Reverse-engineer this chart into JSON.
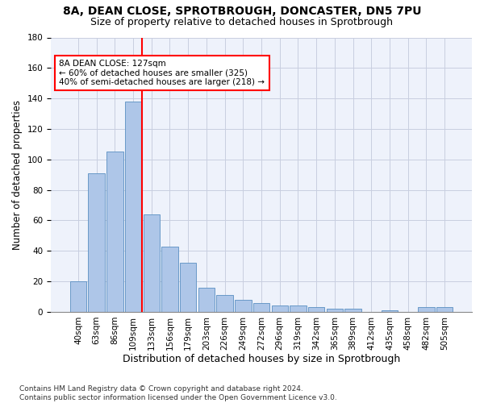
{
  "title1": "8A, DEAN CLOSE, SPROTBROUGH, DONCASTER, DN5 7PU",
  "title2": "Size of property relative to detached houses in Sprotbrough",
  "xlabel": "Distribution of detached houses by size in Sprotbrough",
  "ylabel": "Number of detached properties",
  "footnote": "Contains HM Land Registry data © Crown copyright and database right 2024.\nContains public sector information licensed under the Open Government Licence v3.0.",
  "bar_labels": [
    "40sqm",
    "63sqm",
    "86sqm",
    "109sqm",
    "133sqm",
    "156sqm",
    "179sqm",
    "203sqm",
    "226sqm",
    "249sqm",
    "272sqm",
    "296sqm",
    "319sqm",
    "342sqm",
    "365sqm",
    "389sqm",
    "412sqm",
    "435sqm",
    "458sqm",
    "482sqm",
    "505sqm"
  ],
  "bar_values": [
    20,
    91,
    105,
    138,
    64,
    43,
    32,
    16,
    11,
    8,
    6,
    4,
    4,
    3,
    2,
    2,
    0,
    1,
    0,
    3,
    3
  ],
  "bar_color": "#aec6e8",
  "bar_edge_color": "#5a8fc2",
  "vline_color": "red",
  "annotation_text": "8A DEAN CLOSE: 127sqm\n← 60% of detached houses are smaller (325)\n40% of semi-detached houses are larger (218) →",
  "annotation_box_color": "red",
  "ylim": [
    0,
    180
  ],
  "yticks": [
    0,
    20,
    40,
    60,
    80,
    100,
    120,
    140,
    160,
    180
  ],
  "background_color": "#eef2fb",
  "grid_color": "#c8cee0",
  "title1_fontsize": 10,
  "title2_fontsize": 9,
  "xlabel_fontsize": 9,
  "ylabel_fontsize": 8.5,
  "tick_fontsize": 7.5,
  "annotation_fontsize": 7.5,
  "footnote_fontsize": 6.5
}
